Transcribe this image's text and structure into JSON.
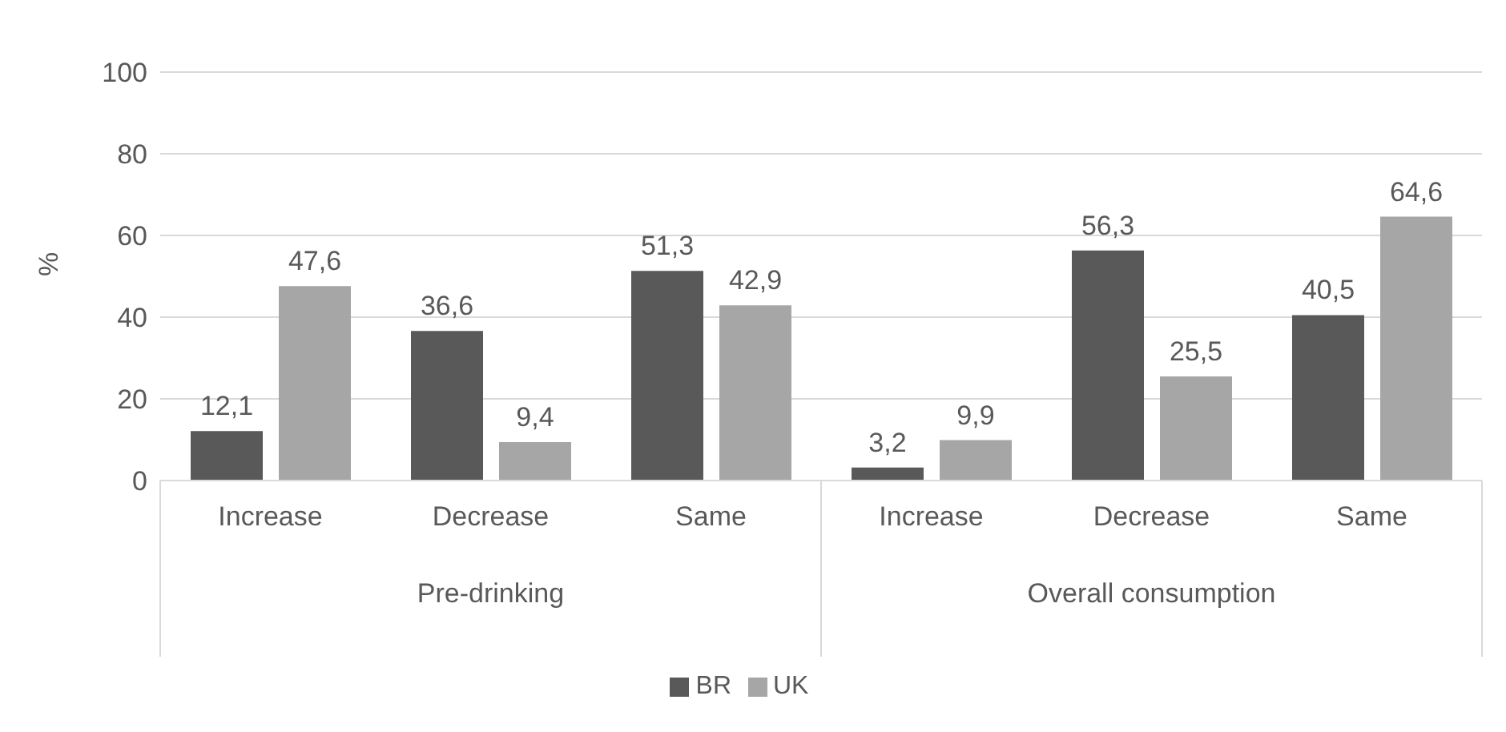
{
  "chart_data": {
    "type": "bar",
    "ylabel": "%",
    "categories": [
      "Increase",
      "Decrease",
      "Same",
      "Increase",
      "Decrease",
      "Same"
    ],
    "annotations": [
      "Pre-drinking",
      "Overall consumption"
    ],
    "series": [
      {
        "name": "BR",
        "color": "#595959",
        "values": [
          12.1,
          36.6,
          51.3,
          3.2,
          56.3,
          40.5
        ],
        "value_labels": [
          "12,1",
          "36,6",
          "51,3",
          "3,2",
          "56,3",
          "40,5"
        ]
      },
      {
        "name": "UK",
        "color": "#a6a6a6",
        "values": [
          47.6,
          9.4,
          42.9,
          9.9,
          25.5,
          64.6
        ],
        "value_labels": [
          "47,6",
          "9,4",
          "42,9",
          "9,9",
          "25,5",
          "64,6"
        ]
      }
    ],
    "ylim": [
      0,
      100
    ],
    "yticks": [
      0,
      20,
      40,
      60,
      80,
      100
    ],
    "grid": "y",
    "legend": "bottom"
  }
}
